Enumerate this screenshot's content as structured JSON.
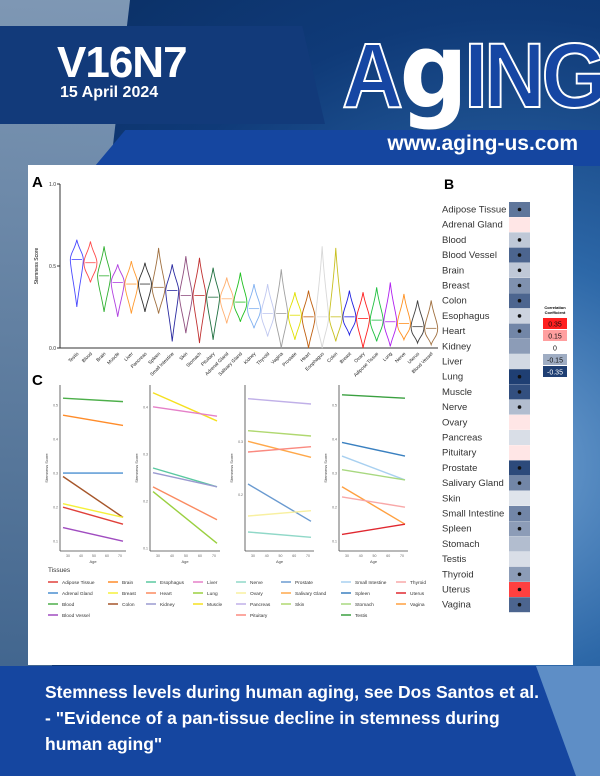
{
  "header": {
    "volume": "V16N7",
    "date": "15 April 2024",
    "logo": "AgING",
    "url": "www.aging-us.com"
  },
  "caption": "Stemness levels during human aging, see Dos Santos et al. - \"Evidence of a pan-tissue decline in stemness during human aging\"",
  "chart_data": [
    {
      "type": "violin",
      "panel": "A",
      "ylabel": "Stemness Score",
      "ylim": [
        0,
        1
      ],
      "yticks": [
        "0.0",
        "0.5",
        "1.0"
      ],
      "categories": [
        "Testis",
        "Blood",
        "Brain",
        "Muscle",
        "Liver",
        "Pancreas",
        "Spleen",
        "Small Intestine",
        "Skin",
        "Stomach",
        "Pituitary",
        "Adrenal Gland",
        "Salivary Gland",
        "Kidney",
        "Thyroid",
        "Vagina",
        "Prostate",
        "Heart",
        "Esophagus",
        "Colon",
        "Breast",
        "Ovary",
        "Adipose Tissue",
        "Lung",
        "Nerve",
        "Uterus",
        "Blood Vessel"
      ],
      "medians": [
        0.54,
        0.52,
        0.44,
        0.4,
        0.39,
        0.39,
        0.37,
        0.35,
        0.32,
        0.32,
        0.31,
        0.3,
        0.28,
        0.24,
        0.21,
        0.21,
        0.2,
        0.19,
        0.19,
        0.19,
        0.19,
        0.18,
        0.17,
        0.16,
        0.15,
        0.13,
        0.12
      ],
      "min": [
        0.25,
        0.4,
        0.22,
        0.19,
        0.21,
        0.22,
        0.21,
        0.04,
        0.09,
        0.03,
        0.05,
        0.15,
        0.16,
        0.12,
        0.07,
        0.0,
        0.05,
        0.0,
        0.0,
        0.04,
        0.08,
        0.0,
        0.04,
        0.01,
        0.05,
        0.03,
        0.02
      ],
      "max": [
        0.66,
        0.65,
        0.62,
        0.51,
        0.53,
        0.52,
        0.61,
        0.51,
        0.56,
        0.55,
        0.49,
        0.43,
        0.46,
        0.39,
        0.39,
        0.48,
        0.34,
        0.35,
        0.62,
        0.61,
        0.35,
        0.34,
        0.37,
        0.4,
        0.33,
        0.29,
        0.29
      ],
      "colors": [
        "#4a4aff",
        "#ff4a4a",
        "#30b030",
        "#b040e0",
        "#ff9a30",
        "#303030",
        "#a07040",
        "#2a2aa0",
        "#905080",
        "#c03030",
        "#207040",
        "#ffb070",
        "#20c020",
        "#80b0f0",
        "#c0c8f0",
        "#a0a0a0",
        "#e0e000",
        "#c06010",
        "#d8d8d8",
        "#c8c020",
        "#2020e0",
        "#ff2020",
        "#20c040",
        "#b020f0",
        "#ff9020",
        "#404040",
        "#a07040"
      ]
    },
    {
      "type": "heatmap",
      "panel": "B",
      "legend_title": "Correlation Coefficient",
      "legend_values": [
        "0.35",
        "0.15",
        "0",
        "-0.15",
        "-0.35"
      ],
      "rows": [
        "Adipose Tissue",
        "Adrenal Gland",
        "Blood",
        "Blood Vessel",
        "Brain",
        "Breast",
        "Colon",
        "Esophagus",
        "Heart",
        "Kidney",
        "Liver",
        "Lung",
        "Muscle",
        "Nerve",
        "Ovary",
        "Pancreas",
        "Pituitary",
        "Prostate",
        "Salivary Gland",
        "Skin",
        "Small Intestine",
        "Spleen",
        "Stomach",
        "Testis",
        "Thyroid",
        "Uterus",
        "Vagina"
      ],
      "values": [
        -0.25,
        0.04,
        -0.1,
        -0.28,
        -0.1,
        -0.2,
        -0.28,
        -0.08,
        -0.22,
        -0.18,
        -0.07,
        -0.35,
        -0.32,
        -0.12,
        0.04,
        -0.06,
        0.04,
        -0.33,
        -0.22,
        -0.05,
        -0.22,
        -0.18,
        -0.12,
        -0.06,
        -0.18,
        0.3,
        -0.28
      ],
      "significant": [
        true,
        false,
        true,
        true,
        true,
        true,
        true,
        true,
        true,
        false,
        false,
        true,
        true,
        true,
        false,
        false,
        false,
        true,
        true,
        false,
        true,
        true,
        false,
        false,
        true,
        true,
        true
      ]
    },
    {
      "type": "line",
      "panel": "C",
      "xlabel": "Age",
      "ylabel": "Stemness Score",
      "xticks": [
        30,
        40,
        50,
        60,
        70
      ],
      "legend_title": "Tissues",
      "subplots": [
        {
          "ylim": [
            0.08,
            0.55
          ],
          "yticks": [
            0.1,
            0.2,
            0.3,
            0.4,
            0.5
          ],
          "series": [
            {
              "name": "Testis",
              "color": "#4daf4a",
              "values": [
                0.52,
                0.51
              ]
            },
            {
              "name": "Brain",
              "color": "#ff8c2a",
              "values": [
                0.47,
                0.44
              ]
            },
            {
              "name": "Adrenal Gland",
              "color": "#4a8fd0",
              "values": [
                0.3,
                0.3
              ]
            },
            {
              "name": "Colon",
              "color": "#a6562a",
              "values": [
                0.29,
                0.17
              ]
            },
            {
              "name": "Breast",
              "color": "#f5f03a",
              "values": [
                0.21,
                0.17
              ]
            },
            {
              "name": "Adipose Tissue",
              "color": "#e0403a",
              "values": [
                0.2,
                0.15
              ]
            },
            {
              "name": "Blood Vessel",
              "color": "#a04cc0",
              "values": [
                0.14,
                0.1
              ]
            }
          ]
        },
        {
          "ylim": [
            0.1,
            0.44
          ],
          "yticks": [
            0.1,
            0.2,
            0.3,
            0.4
          ],
          "series": [
            {
              "name": "Muscle",
              "color": "#f5e020",
              "values": [
                0.43,
                0.37
              ]
            },
            {
              "name": "Liver",
              "color": "#e580c8",
              "values": [
                0.4,
                0.38
              ]
            },
            {
              "name": "Esophagus",
              "color": "#5ac8a0",
              "values": [
                0.27,
                0.23
              ]
            },
            {
              "name": "Kidney",
              "color": "#9a9ad0",
              "values": [
                0.26,
                0.23
              ]
            },
            {
              "name": "Heart",
              "color": "#fa8a60",
              "values": [
                0.23,
                0.16
              ]
            },
            {
              "name": "Lung",
              "color": "#9ad040",
              "values": [
                0.22,
                0.11
              ]
            }
          ]
        },
        {
          "ylim": [
            0.1,
            0.4
          ],
          "yticks": [
            0.2,
            0.3
          ],
          "series": [
            {
              "name": "Pancreas",
              "color": "#c0b0e8",
              "values": [
                0.38,
                0.37
              ]
            },
            {
              "name": "Skin",
              "color": "#b0d870",
              "values": [
                0.32,
                0.31
              ]
            },
            {
              "name": "Salivary Gland",
              "color": "#ffa84a",
              "values": [
                0.3,
                0.27
              ]
            },
            {
              "name": "Pituitary",
              "color": "#fa8a80",
              "values": [
                0.28,
                0.29
              ]
            },
            {
              "name": "Prostate",
              "color": "#6a9ad0",
              "values": [
                0.22,
                0.15
              ]
            },
            {
              "name": "Ovary",
              "color": "#f8f0a0",
              "values": [
                0.16,
                0.17
              ]
            },
            {
              "name": "Nerve",
              "color": "#90d8c8",
              "values": [
                0.13,
                0.12
              ]
            }
          ]
        },
        {
          "ylim": [
            0.08,
            0.55
          ],
          "yticks": [
            0.1,
            0.2,
            0.3,
            0.4,
            0.5
          ],
          "series": [
            {
              "name": "Testis",
              "color": "#3aa040",
              "values": [
                0.53,
                0.52
              ]
            },
            {
              "name": "Spleen",
              "color": "#3a80c0",
              "values": [
                0.39,
                0.35
              ]
            },
            {
              "name": "Small Intestine",
              "color": "#a8d0f0",
              "values": [
                0.35,
                0.28
              ]
            },
            {
              "name": "Stomach",
              "color": "#a8d880",
              "values": [
                0.31,
                0.28
              ]
            },
            {
              "name": "Vagina",
              "color": "#ffa040",
              "values": [
                0.26,
                0.15
              ]
            },
            {
              "name": "Thyroid",
              "color": "#f8a8a8",
              "values": [
                0.23,
                0.2
              ]
            },
            {
              "name": "Uterus",
              "color": "#e02830",
              "values": [
                0.12,
                0.15
              ]
            }
          ]
        }
      ],
      "legend": [
        [
          "Adipose Tissue",
          "#e0403a"
        ],
        [
          "Adrenal Gland",
          "#4a8fd0"
        ],
        [
          "Blood",
          "#4daf4a"
        ],
        [
          "Blood Vessel",
          "#a04cc0"
        ],
        [
          "Brain",
          "#ff8c2a"
        ],
        [
          "Breast",
          "#f5f03a"
        ],
        [
          "Colon",
          "#a6562a"
        ],
        [
          "Esophagus",
          "#5ac8a0"
        ],
        [
          "Heart",
          "#fa8a60"
        ],
        [
          "Kidney",
          "#9a9ad0"
        ],
        [
          "Liver",
          "#e580c8"
        ],
        [
          "Lung",
          "#9ad040"
        ],
        [
          "Muscle",
          "#f5e020"
        ],
        [
          "Nerve",
          "#90d8c8"
        ],
        [
          "Ovary",
          "#f8f0a0"
        ],
        [
          "Pancreas",
          "#c0b0e8"
        ],
        [
          "Pituitary",
          "#fa8a80"
        ],
        [
          "Prostate",
          "#6a9ad0"
        ],
        [
          "Salivary Gland",
          "#ffa84a"
        ],
        [
          "Skin",
          "#b0d870"
        ],
        [
          "Small Intestine",
          "#a8d0f0"
        ],
        [
          "Spleen",
          "#3a80c0"
        ],
        [
          "Stomach",
          "#a8d880"
        ],
        [
          "Testis",
          "#3aa040"
        ],
        [
          "Thyroid",
          "#f8a8a8"
        ],
        [
          "Uterus",
          "#e02830"
        ],
        [
          "Vagina",
          "#ffa040"
        ]
      ]
    }
  ]
}
